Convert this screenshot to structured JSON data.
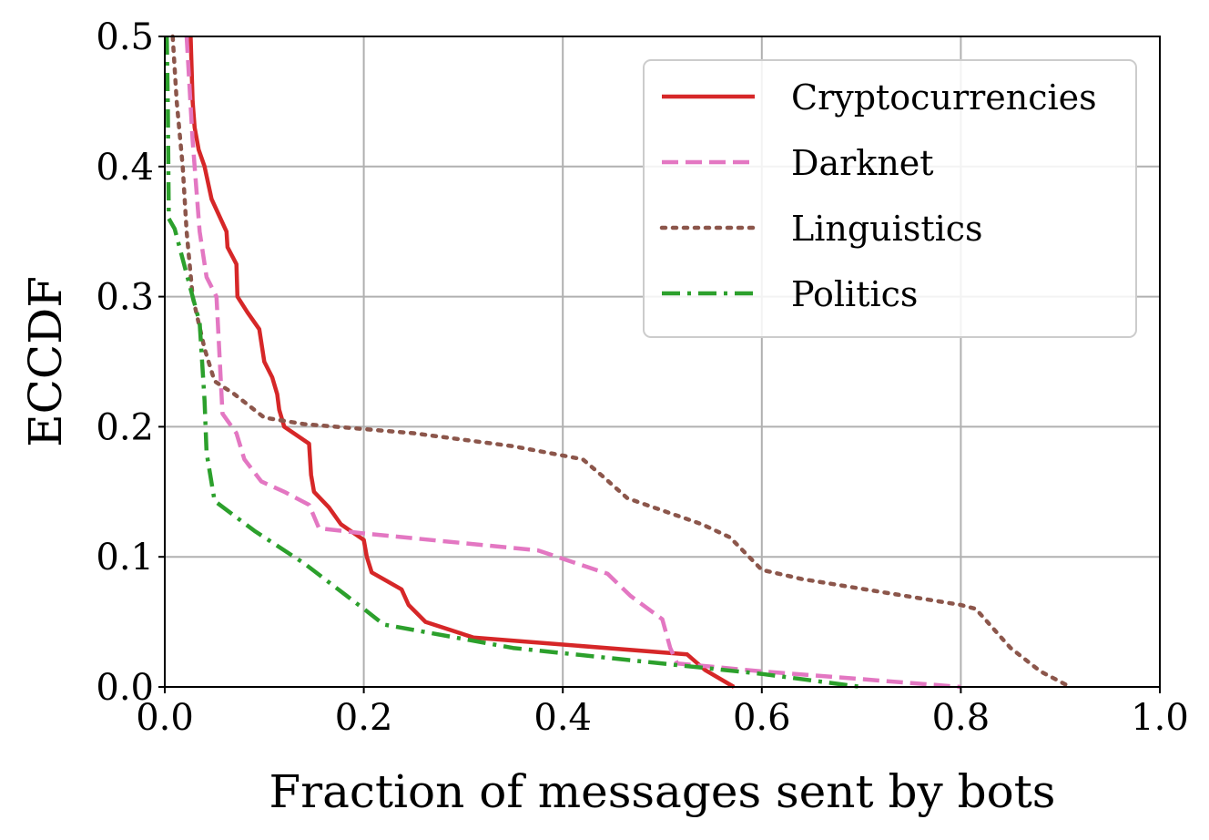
{
  "chart_data": {
    "type": "line",
    "title": "",
    "xlabel": "Fraction of messages sent by bots",
    "ylabel": "ECCDF",
    "xlim": [
      0.0,
      1.0
    ],
    "ylim": [
      0.0,
      0.5
    ],
    "xticks": [
      "0.0",
      "0.2",
      "0.4",
      "0.6",
      "0.8",
      "1.0"
    ],
    "yticks": [
      "0.0",
      "0.1",
      "0.2",
      "0.3",
      "0.4",
      "0.5"
    ],
    "grid": true,
    "legend_position": "top-right",
    "series": [
      {
        "name": "Cryptocurrencies",
        "color": "#d62728",
        "style": "solid",
        "points": [
          [
            0.026,
            0.5
          ],
          [
            0.028,
            0.45
          ],
          [
            0.03,
            0.43
          ],
          [
            0.034,
            0.413
          ],
          [
            0.04,
            0.4
          ],
          [
            0.047,
            0.375
          ],
          [
            0.062,
            0.35
          ],
          [
            0.063,
            0.338
          ],
          [
            0.072,
            0.325
          ],
          [
            0.073,
            0.3
          ],
          [
            0.083,
            0.288
          ],
          [
            0.095,
            0.275
          ],
          [
            0.1,
            0.25
          ],
          [
            0.108,
            0.238
          ],
          [
            0.113,
            0.225
          ],
          [
            0.115,
            0.213
          ],
          [
            0.12,
            0.2
          ],
          [
            0.145,
            0.187
          ],
          [
            0.147,
            0.163
          ],
          [
            0.15,
            0.15
          ],
          [
            0.165,
            0.138
          ],
          [
            0.177,
            0.125
          ],
          [
            0.2,
            0.113
          ],
          [
            0.203,
            0.1
          ],
          [
            0.208,
            0.088
          ],
          [
            0.238,
            0.075
          ],
          [
            0.245,
            0.063
          ],
          [
            0.262,
            0.05
          ],
          [
            0.31,
            0.038
          ],
          [
            0.525,
            0.025
          ],
          [
            0.543,
            0.013
          ],
          [
            0.572,
            0.0
          ]
        ]
      },
      {
        "name": "Darknet",
        "color": "#e377c2",
        "style": "dashed",
        "points": [
          [
            0.022,
            0.5
          ],
          [
            0.025,
            0.46
          ],
          [
            0.028,
            0.42
          ],
          [
            0.032,
            0.38
          ],
          [
            0.035,
            0.35
          ],
          [
            0.042,
            0.315
          ],
          [
            0.052,
            0.3
          ],
          [
            0.058,
            0.21
          ],
          [
            0.072,
            0.195
          ],
          [
            0.08,
            0.175
          ],
          [
            0.097,
            0.158
          ],
          [
            0.12,
            0.15
          ],
          [
            0.145,
            0.14
          ],
          [
            0.155,
            0.122
          ],
          [
            0.2,
            0.118
          ],
          [
            0.375,
            0.105
          ],
          [
            0.445,
            0.087
          ],
          [
            0.468,
            0.07
          ],
          [
            0.5,
            0.052
          ],
          [
            0.508,
            0.03
          ],
          [
            0.515,
            0.018
          ],
          [
            0.6,
            0.012
          ],
          [
            0.7,
            0.006
          ],
          [
            0.8,
            0.0
          ]
        ]
      },
      {
        "name": "Linguistics",
        "color": "#8c564b",
        "style": "dotted",
        "points": [
          [
            0.008,
            0.5
          ],
          [
            0.012,
            0.45
          ],
          [
            0.018,
            0.4
          ],
          [
            0.022,
            0.35
          ],
          [
            0.028,
            0.3
          ],
          [
            0.04,
            0.26
          ],
          [
            0.05,
            0.235
          ],
          [
            0.07,
            0.225
          ],
          [
            0.1,
            0.207
          ],
          [
            0.14,
            0.202
          ],
          [
            0.25,
            0.195
          ],
          [
            0.35,
            0.185
          ],
          [
            0.42,
            0.175
          ],
          [
            0.44,
            0.162
          ],
          [
            0.465,
            0.145
          ],
          [
            0.54,
            0.125
          ],
          [
            0.568,
            0.115
          ],
          [
            0.6,
            0.09
          ],
          [
            0.64,
            0.083
          ],
          [
            0.8,
            0.063
          ],
          [
            0.815,
            0.06
          ],
          [
            0.85,
            0.03
          ],
          [
            0.88,
            0.012
          ],
          [
            0.91,
            0.0
          ]
        ]
      },
      {
        "name": "Politics",
        "color": "#2ca02c",
        "style": "dashdot",
        "points": [
          [
            0.002,
            0.5
          ],
          [
            0.003,
            0.45
          ],
          [
            0.004,
            0.36
          ],
          [
            0.01,
            0.352
          ],
          [
            0.028,
            0.3
          ],
          [
            0.035,
            0.28
          ],
          [
            0.04,
            0.22
          ],
          [
            0.042,
            0.18
          ],
          [
            0.05,
            0.143
          ],
          [
            0.09,
            0.12
          ],
          [
            0.14,
            0.095
          ],
          [
            0.2,
            0.06
          ],
          [
            0.22,
            0.048
          ],
          [
            0.35,
            0.03
          ],
          [
            0.5,
            0.018
          ],
          [
            0.6,
            0.01
          ],
          [
            0.7,
            0.0
          ]
        ]
      }
    ]
  }
}
